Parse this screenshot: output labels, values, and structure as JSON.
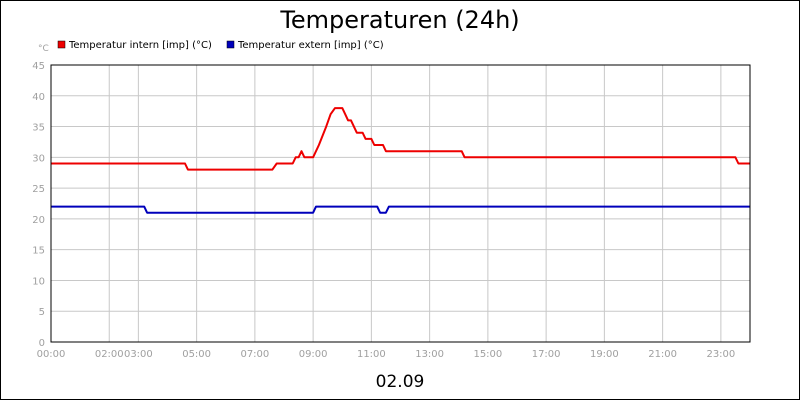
{
  "chart_data": {
    "type": "line",
    "title": "Temperaturen (24h)",
    "unit_label": "°C",
    "date_label": "02.09",
    "xlim": [
      0,
      24
    ],
    "ylim": [
      0,
      45
    ],
    "y_ticks": [
      0,
      5,
      10,
      15,
      20,
      25,
      30,
      35,
      40,
      45
    ],
    "x_ticks": [
      {
        "label": "00:00",
        "value": 0
      },
      {
        "label": "02:00",
        "value": 2
      },
      {
        "label": "03:00",
        "value": 3
      },
      {
        "label": "05:00",
        "value": 5
      },
      {
        "label": "07:00",
        "value": 7
      },
      {
        "label": "09:00",
        "value": 9
      },
      {
        "label": "11:00",
        "value": 11
      },
      {
        "label": "13:00",
        "value": 13
      },
      {
        "label": "15:00",
        "value": 15
      },
      {
        "label": "17:00",
        "value": 17
      },
      {
        "label": "19:00",
        "value": 19
      },
      {
        "label": "21:00",
        "value": 21
      },
      {
        "label": "23:00",
        "value": 23
      }
    ],
    "grid": true,
    "legend_position": "top-left",
    "series": [
      {
        "name": "Temperatur intern [imp] (°C)",
        "color": "#ee0000",
        "points": [
          [
            0,
            29
          ],
          [
            4.6,
            29
          ],
          [
            4.7,
            28
          ],
          [
            7.6,
            28
          ],
          [
            7.75,
            29
          ],
          [
            8.3,
            29
          ],
          [
            8.4,
            30
          ],
          [
            8.5,
            30
          ],
          [
            8.6,
            31
          ],
          [
            8.7,
            30
          ],
          [
            9.0,
            30
          ],
          [
            9.2,
            32
          ],
          [
            9.45,
            35
          ],
          [
            9.6,
            37
          ],
          [
            9.75,
            38
          ],
          [
            10.0,
            38
          ],
          [
            10.1,
            37
          ],
          [
            10.2,
            36
          ],
          [
            10.3,
            36
          ],
          [
            10.4,
            35
          ],
          [
            10.5,
            34
          ],
          [
            10.7,
            34
          ],
          [
            10.8,
            33
          ],
          [
            11.0,
            33
          ],
          [
            11.1,
            32
          ],
          [
            11.4,
            32
          ],
          [
            11.5,
            31
          ],
          [
            14.1,
            31
          ],
          [
            14.2,
            30
          ],
          [
            23.5,
            30
          ],
          [
            23.6,
            29
          ],
          [
            24,
            29
          ]
        ]
      },
      {
        "name": "Temperatur extern [imp] (°C)",
        "color": "#0000bb",
        "points": [
          [
            0,
            22
          ],
          [
            3.2,
            22
          ],
          [
            3.3,
            21
          ],
          [
            9.0,
            21
          ],
          [
            9.1,
            22
          ],
          [
            11.2,
            22
          ],
          [
            11.3,
            21
          ],
          [
            11.5,
            21
          ],
          [
            11.6,
            22
          ],
          [
            24,
            22
          ]
        ]
      }
    ]
  }
}
